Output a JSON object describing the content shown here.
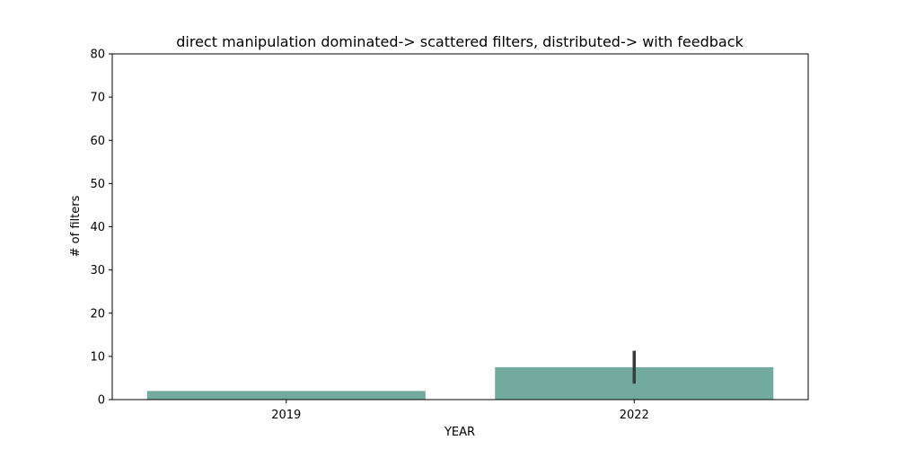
{
  "chart_data": {
    "type": "bar",
    "title": "direct manipulation dominated-> scattered filters, distributed-> with feedback",
    "xlabel": "YEAR",
    "ylabel": "# of filters",
    "categories": [
      "2019",
      "2022"
    ],
    "values": [
      2,
      7.5
    ],
    "error_bars": [
      null,
      {
        "low": 3.7,
        "high": 11.3
      }
    ],
    "ylim": [
      0,
      80
    ],
    "yticks": [
      0,
      10,
      20,
      30,
      40,
      50,
      60,
      70,
      80
    ],
    "grid": false,
    "colors": {
      "bar": "#72ab9d",
      "error_bar": "#3b3b3b",
      "axis": "#000000"
    }
  }
}
